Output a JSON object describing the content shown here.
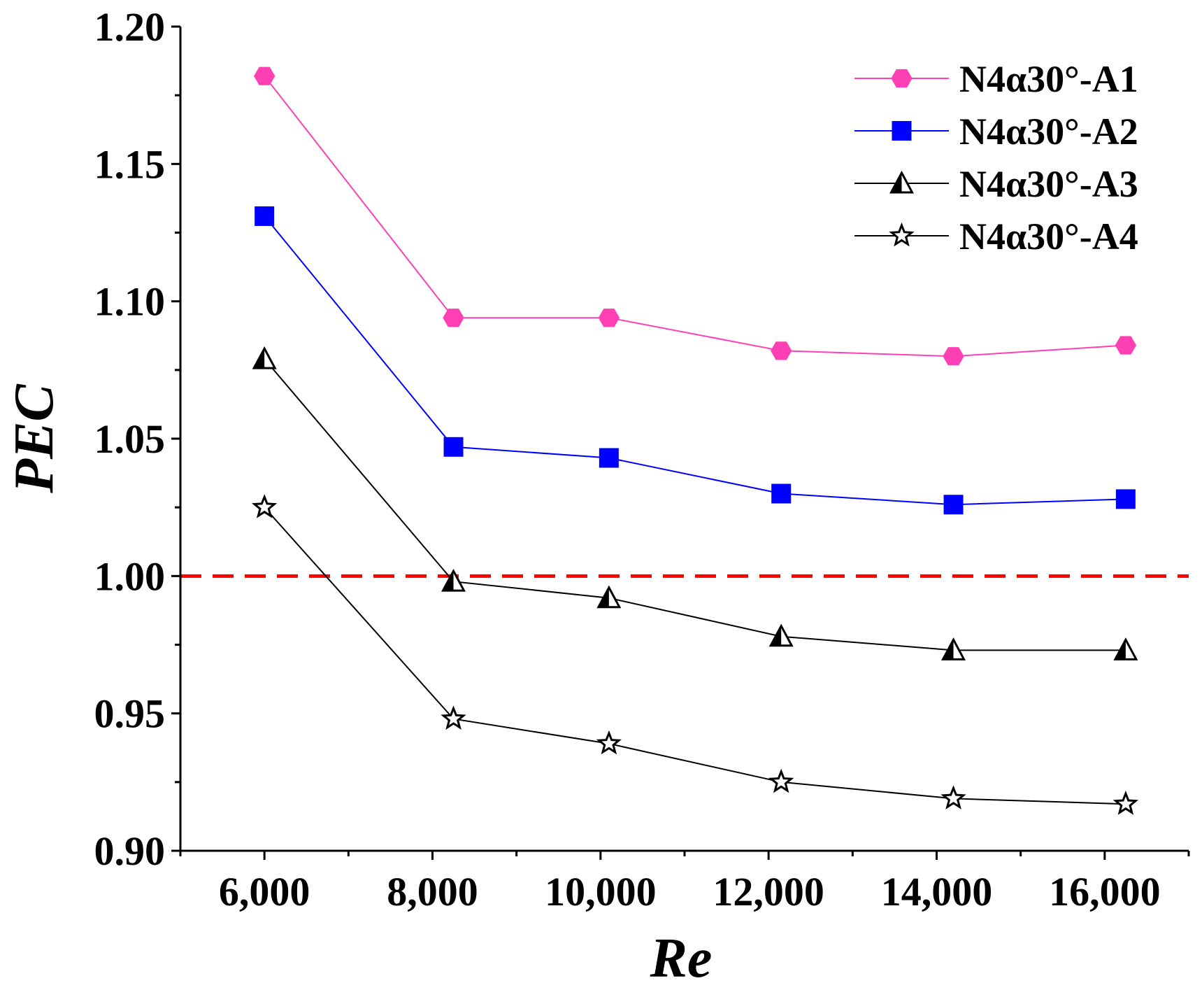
{
  "chart_data": {
    "type": "line",
    "xlabel": "Re",
    "ylabel": "PEC",
    "xlim": [
      5000,
      17000
    ],
    "ylim": [
      0.9,
      1.2
    ],
    "x_ticks": [
      "6,000",
      "8,000",
      "10,000",
      "12,000",
      "14,000",
      "16,000"
    ],
    "y_ticks": [
      "0.90",
      "0.95",
      "1.00",
      "1.05",
      "1.10",
      "1.15",
      "1.20"
    ],
    "reference_line": {
      "y": 1.0,
      "color": "#ff0000",
      "style": "dashed"
    },
    "legend_position": "top-right",
    "series": [
      {
        "name": "N4α30°-A1",
        "marker": "hexagon",
        "color": "#ff3fb4",
        "filled": true,
        "x": [
          6000,
          8250,
          10100,
          12150,
          14200,
          16250
        ],
        "values": [
          1.182,
          1.094,
          1.094,
          1.082,
          1.08,
          1.084
        ]
      },
      {
        "name": "N4α30°-A2",
        "marker": "square",
        "color": "#0000ff",
        "filled": true,
        "x": [
          6000,
          8250,
          10100,
          12150,
          14200,
          16250
        ],
        "values": [
          1.131,
          1.047,
          1.043,
          1.03,
          1.026,
          1.028
        ]
      },
      {
        "name": "N4α30°-A3",
        "marker": "triangle-half",
        "color": "#000000",
        "filled": false,
        "x": [
          6000,
          8250,
          10100,
          12150,
          14200,
          16250
        ],
        "values": [
          1.079,
          0.998,
          0.992,
          0.978,
          0.973,
          0.973
        ]
      },
      {
        "name": "N4α30°-A4",
        "marker": "star",
        "color": "#000000",
        "filled": false,
        "x": [
          6000,
          8250,
          10100,
          12150,
          14200,
          16250
        ],
        "values": [
          1.025,
          0.948,
          0.939,
          0.925,
          0.919,
          0.917
        ]
      }
    ]
  }
}
